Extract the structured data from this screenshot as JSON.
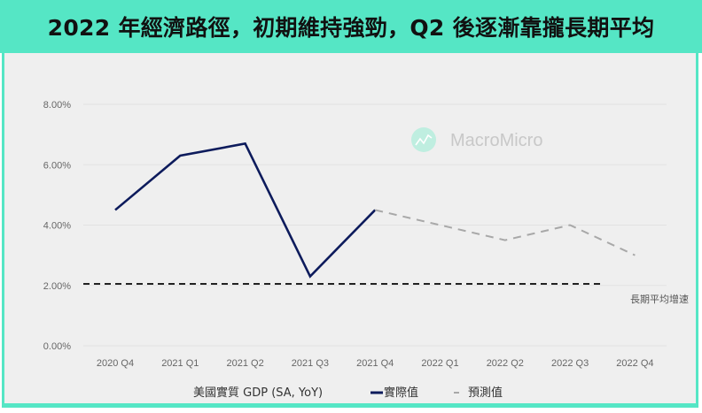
{
  "title": "2022 年經濟路徑，初期維持強勁，Q2 後逐漸靠攏長期平均",
  "watermark": "MacroMicro",
  "colors": {
    "header_bg": "#55e6c5",
    "plot_bg": "#efefef",
    "actual": "#0d1b5c",
    "forecast": "#a8a8a8",
    "average": "#222222"
  },
  "legend": {
    "series_label": "美國實質 GDP (SA, YoY)",
    "actual_label": "實際值",
    "forecast_label": "預測值"
  },
  "average_label": "長期平均增速",
  "chart_data": {
    "type": "line",
    "title": "2022 年經濟路徑，初期維持強勁，Q2 後逐漸靠攏長期平均",
    "xlabel": "",
    "ylabel": "",
    "categories": [
      "2020 Q4",
      "2021 Q1",
      "2021 Q2",
      "2021 Q3",
      "2021 Q4",
      "2022 Q1",
      "2022 Q2",
      "2022 Q3",
      "2022 Q4"
    ],
    "series": [
      {
        "name": "實際值",
        "style": "solid",
        "color": "#0d1b5c",
        "values": [
          4.5,
          6.3,
          6.7,
          2.3,
          4.5,
          null,
          null,
          null,
          null
        ]
      },
      {
        "name": "預測值",
        "style": "dashed",
        "color": "#a8a8a8",
        "values": [
          null,
          null,
          null,
          null,
          4.5,
          4.0,
          3.5,
          4.0,
          3.0
        ]
      },
      {
        "name": "長期平均增速",
        "style": "dashed",
        "color": "#222222",
        "values": [
          2.05,
          2.05,
          2.05,
          2.05,
          2.05,
          2.05,
          2.05,
          2.05,
          2.05
        ]
      }
    ],
    "yticks": [
      "0.00%",
      "2.00%",
      "4.00%",
      "6.00%",
      "8.00%"
    ],
    "ylim": [
      0,
      8
    ],
    "grid": true,
    "legend_position": "bottom",
    "annotations": [
      "長期平均增速"
    ]
  }
}
